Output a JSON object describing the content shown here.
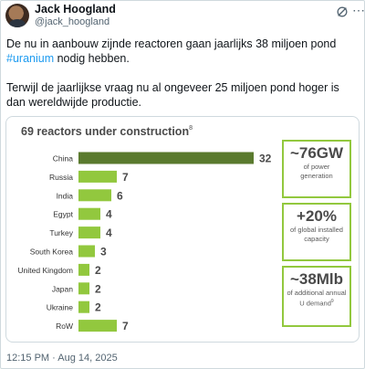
{
  "author": {
    "name": "Jack Hoogland",
    "handle": "@jack_hoogland",
    "verified": false
  },
  "icons": {
    "grok": "grok-icon",
    "more": "more-icon"
  },
  "tweet": {
    "line1": "De nu in aanbouw zijnde reactoren gaan jaarlijks 38 miljoen pond",
    "hashtag": "#uranium",
    "line1_end": " nodig hebben.",
    "line2": "Terwijl de jaarlijkse vraag nu al ongeveer 25 miljoen pond hoger is dan wereldwijde productie.",
    "timestamp": "12:15 PM · Aug 14, 2025"
  },
  "colors": {
    "highlight_bar": "#5a7a2e",
    "bar": "#92c83e",
    "link": "#1d9bf0"
  },
  "chart_data": {
    "type": "bar",
    "orientation": "horizontal",
    "title": "69 reactors under construction",
    "title_footnote": "8",
    "categories": [
      "China",
      "Russia",
      "India",
      "Egypt",
      "Turkey",
      "South Korea",
      "United Kingdom",
      "Japan",
      "Ukraine",
      "RoW"
    ],
    "values": [
      32,
      7,
      6,
      4,
      4,
      3,
      2,
      2,
      2,
      7
    ],
    "highlighted_category": "China",
    "xlim": [
      0,
      32
    ],
    "grid": false,
    "data_labels": true
  },
  "stats": [
    {
      "big": "~76GW",
      "small": "of power generation",
      "footnote": ""
    },
    {
      "big": "+20%",
      "small": "of global installed capacity",
      "footnote": ""
    },
    {
      "big": "~38Mlb",
      "small": "of additional annual U demand",
      "footnote": "9"
    }
  ]
}
